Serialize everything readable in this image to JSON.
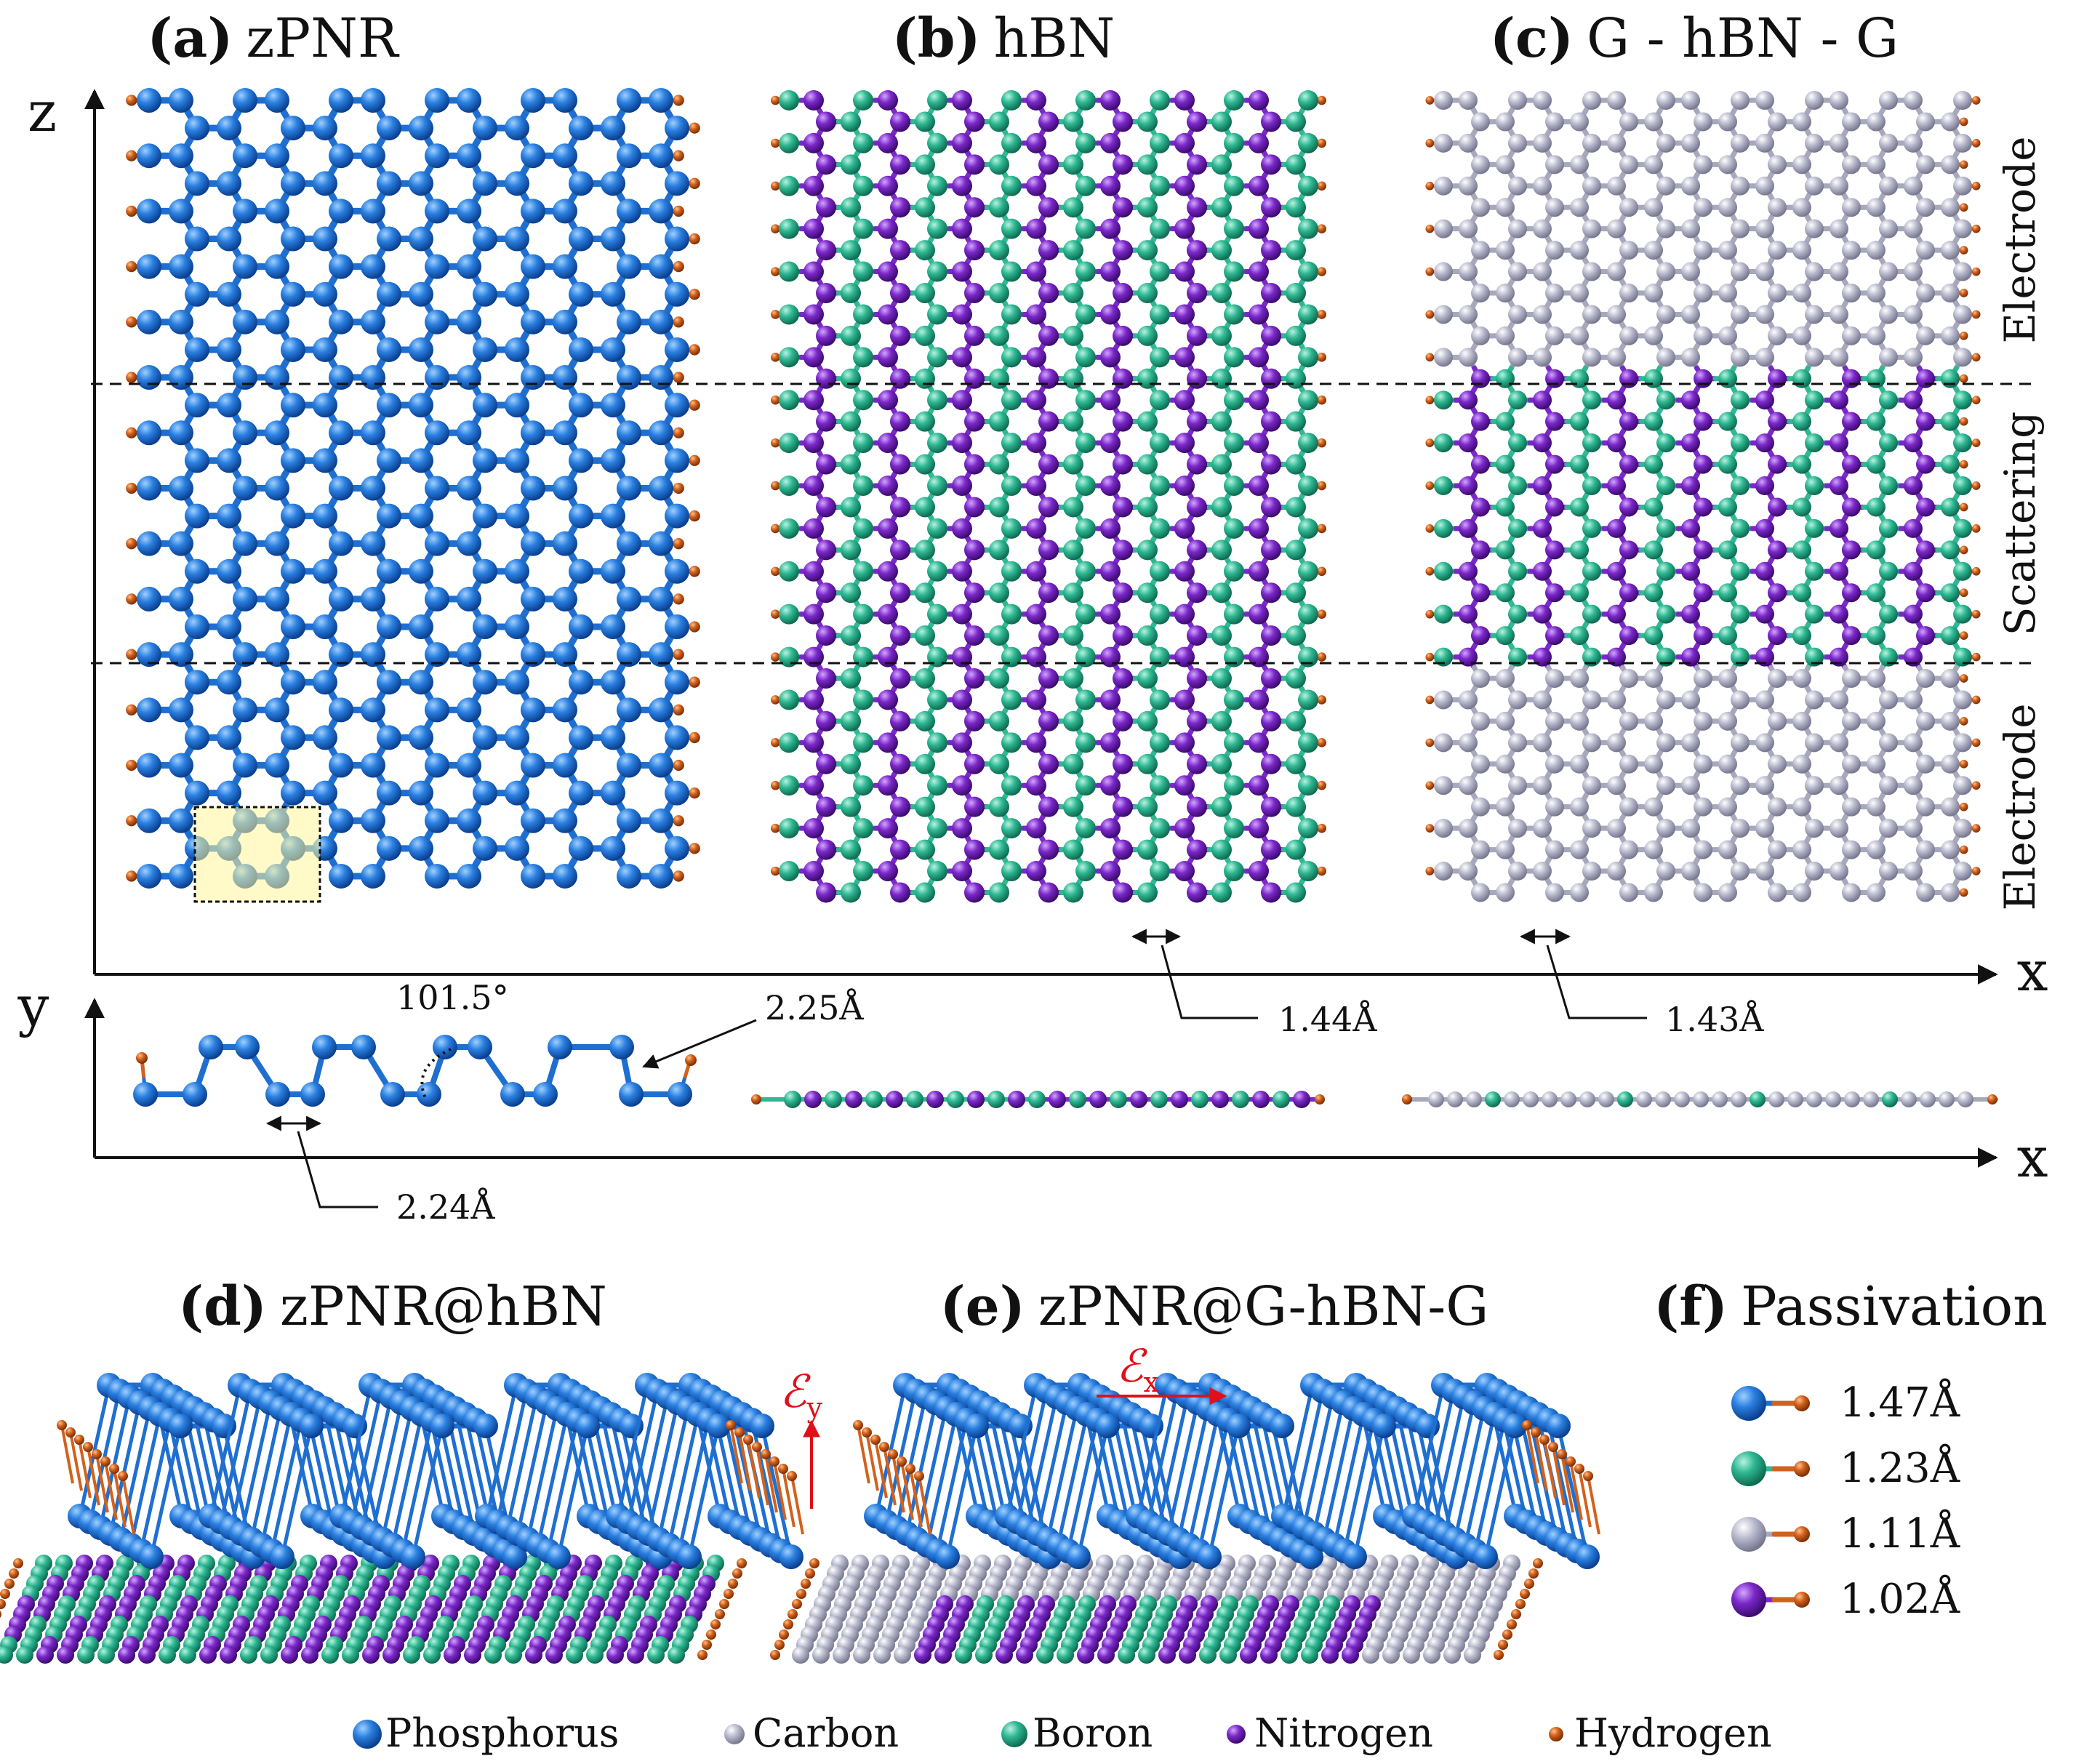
{
  "panels": {
    "a": {
      "letter": "(a)",
      "name": "zPNR"
    },
    "b": {
      "letter": "(b)",
      "name": "hBN"
    },
    "c": {
      "letter": "(c)",
      "name": "G - hBN - G"
    },
    "d": {
      "letter": "(d)",
      "name": "zPNR@hBN"
    },
    "e": {
      "letter": "(e)",
      "name": "zPNR@G-hBN-G"
    },
    "f": {
      "letter": "(f)",
      "name": "Passivation"
    }
  },
  "axes": {
    "z": "z",
    "y": "y",
    "x_top": "x",
    "x_bottom": "x"
  },
  "regions": {
    "electrode_top": "Electrode",
    "scattering": "Scattering",
    "electrode_bottom": "Electrode"
  },
  "measurements": {
    "angle": "101.5°",
    "pp_upper_bond": "2.25Å",
    "pp_lower_bond": "2.24Å",
    "bn_bond": "1.44Å",
    "cc_bond": "1.43Å"
  },
  "fields": {
    "ey": "ℰ",
    "ey_sub": "y",
    "ex": "ℰ",
    "ex_sub": "x"
  },
  "passivation": [
    {
      "element": "Phosphorus",
      "length": "1.47Å"
    },
    {
      "element": "Boron",
      "length": "1.23Å"
    },
    {
      "element": "Carbon",
      "length": "1.11Å"
    },
    {
      "element": "Nitrogen",
      "length": "1.02Å"
    }
  ],
  "legend": [
    {
      "label": "Phosphorus",
      "color": "#1f6fd1"
    },
    {
      "label": "Carbon",
      "color": "#b7b7cc"
    },
    {
      "label": "Boron",
      "color": "#2fb893"
    },
    {
      "label": "Nitrogen",
      "color": "#7b28c9"
    },
    {
      "label": "Hydrogen",
      "color": "#d2611c"
    }
  ],
  "colors": {
    "phosphorus": "#1f6fd1",
    "carbon": "#b7b7cc",
    "boron": "#2fb893",
    "nitrogen": "#7b28c9",
    "hydrogen": "#d2611c",
    "field": "#e0101a",
    "unit_cell": "#fff69a"
  }
}
